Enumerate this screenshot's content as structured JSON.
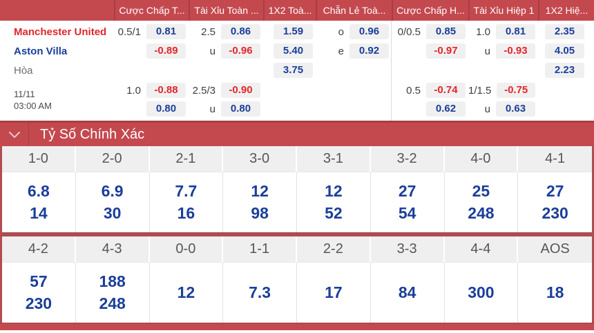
{
  "colors": {
    "header_red": "#c4494f",
    "dark_red": "#a73e44",
    "frame_red": "#b24c50",
    "navy": "#1b3e99",
    "odds_red": "#e4252a",
    "box_bg": "#f0f0f1",
    "label_gray": "#3d3d3d",
    "score_header_bg": "#efefef",
    "score_header_text": "#565656",
    "grid_line": "#e2e2e2"
  },
  "odds_table": {
    "columns": [
      "",
      "Cược Chấp T...",
      "Tài Xỉu Toàn ...",
      "1X2 Toà...",
      "Chẵn Lẻ Toà...",
      "Cược Chấp H...",
      "Tài Xỉu Hiệp 1",
      "1X2 Hiệ..."
    ],
    "full_time_rows": [
      {
        "team": {
          "name": "Manchester United",
          "color": "#e0262b",
          "bold": true,
          "id": "home-team-name"
        },
        "cells": [
          {
            "label": "0.5/1",
            "value": "0.81"
          },
          {
            "label": "2.5",
            "value": "0.86"
          },
          {
            "value": "1.59"
          },
          {
            "label": "o",
            "value": "0.96"
          },
          {
            "label": "0/0.5",
            "value": "0.85"
          },
          {
            "label": "1.0",
            "value": "0.81"
          },
          {
            "value": "2.35"
          }
        ]
      },
      {
        "team": {
          "name": "Aston Villa",
          "color": "#1b3e99",
          "bold": true,
          "id": "away-team-name"
        },
        "cells": [
          {
            "value": "-0.89"
          },
          {
            "label": "u",
            "value": "-0.96"
          },
          {
            "value": "5.40"
          },
          {
            "label": "e",
            "value": "0.92"
          },
          {
            "value": "-0.97"
          },
          {
            "label": "u",
            "value": "-0.93"
          },
          {
            "value": "4.05"
          }
        ]
      },
      {
        "team": {
          "name": "Hòa",
          "color": "#6e6e6e",
          "bold": false,
          "id": "draw-label"
        },
        "cells": [
          null,
          null,
          {
            "value": "3.75"
          },
          null,
          null,
          null,
          {
            "value": "2.23"
          }
        ]
      }
    ],
    "second_block": {
      "date": "11/11",
      "time": "03:00 AM",
      "rows": [
        {
          "cells": [
            {
              "label": "1.0",
              "value": "-0.88"
            },
            {
              "label": "2.5/3",
              "value": "-0.90"
            },
            null,
            null,
            {
              "label": "0.5",
              "value": "-0.74"
            },
            {
              "label": "1/1.5",
              "value": "-0.75"
            },
            null
          ]
        },
        {
          "cells": [
            {
              "value": "0.80"
            },
            {
              "label": "u",
              "value": "0.80"
            },
            null,
            null,
            {
              "value": "0.62"
            },
            {
              "label": "u",
              "value": "0.63"
            },
            null
          ]
        }
      ]
    }
  },
  "correct_score": {
    "title": "Tỷ Số Chính Xác",
    "rows": [
      [
        {
          "score": "1-0",
          "odds": [
            "6.8",
            "14"
          ]
        },
        {
          "score": "2-0",
          "odds": [
            "6.9",
            "30"
          ]
        },
        {
          "score": "2-1",
          "odds": [
            "7.7",
            "16"
          ]
        },
        {
          "score": "3-0",
          "odds": [
            "12",
            "98"
          ]
        },
        {
          "score": "3-1",
          "odds": [
            "12",
            "52"
          ]
        },
        {
          "score": "3-2",
          "odds": [
            "27",
            "54"
          ]
        },
        {
          "score": "4-0",
          "odds": [
            "25",
            "248"
          ]
        },
        {
          "score": "4-1",
          "odds": [
            "27",
            "230"
          ]
        }
      ],
      [
        {
          "score": "4-2",
          "odds": [
            "57",
            "230"
          ]
        },
        {
          "score": "4-3",
          "odds": [
            "188",
            "248"
          ]
        },
        {
          "score": "0-0",
          "odds": [
            "12"
          ]
        },
        {
          "score": "1-1",
          "odds": [
            "7.3"
          ]
        },
        {
          "score": "2-2",
          "odds": [
            "17"
          ]
        },
        {
          "score": "3-3",
          "odds": [
            "84"
          ]
        },
        {
          "score": "4-4",
          "odds": [
            "300"
          ]
        },
        {
          "score": "AOS",
          "odds": [
            "18"
          ]
        }
      ]
    ]
  }
}
